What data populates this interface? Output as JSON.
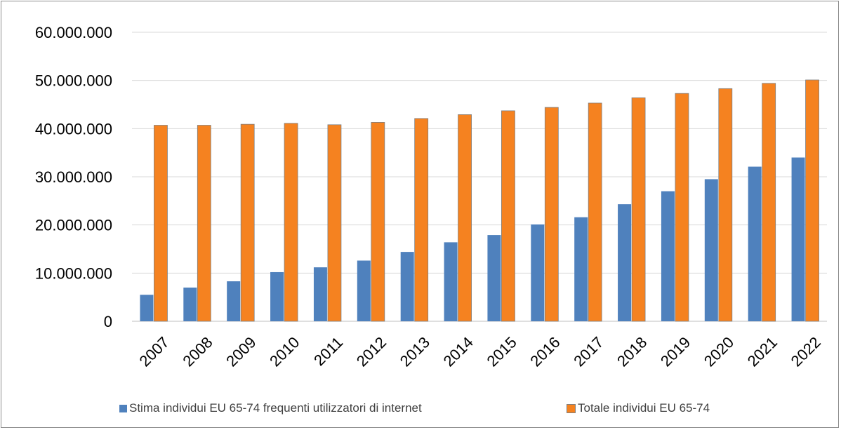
{
  "chart_data": {
    "type": "bar",
    "categories": [
      "2007",
      "2008",
      "2009",
      "2010",
      "2011",
      "2012",
      "2013",
      "2014",
      "2015",
      "2016",
      "2017",
      "2018",
      "2019",
      "2020",
      "2021",
      "2022"
    ],
    "series": [
      {
        "name": "Stima individui EU 65-74 frequenti utilizzatori di internet",
        "color": "#4f81bd",
        "values": [
          5500000,
          7000000,
          8300000,
          10200000,
          11200000,
          12600000,
          14400000,
          16400000,
          17900000,
          20100000,
          21600000,
          24300000,
          27000000,
          29500000,
          32100000,
          34000000
        ]
      },
      {
        "name": "Totale individui EU 65-74",
        "color": "#f58220",
        "values": [
          40700000,
          40700000,
          40900000,
          41100000,
          40800000,
          41300000,
          42100000,
          42900000,
          43700000,
          44400000,
          45300000,
          46400000,
          47300000,
          48300000,
          49400000,
          50100000
        ]
      }
    ],
    "ylim": [
      0,
      60000000
    ],
    "yticks": [
      "0",
      "10.000.000",
      "20.000.000",
      "30.000.000",
      "40.000.000",
      "50.000.000",
      "60.000.000"
    ],
    "grid": true,
    "legend_position": "bottom"
  }
}
